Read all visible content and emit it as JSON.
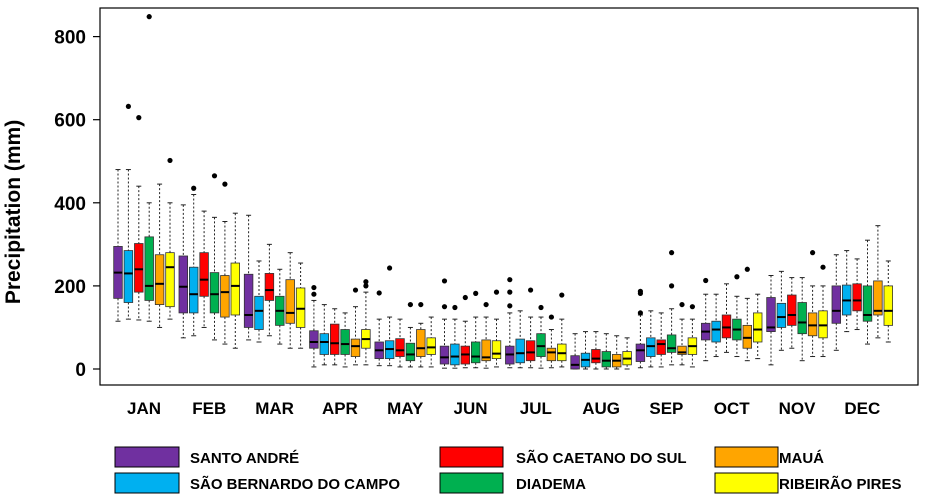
{
  "chart_data": {
    "type": "boxplot",
    "title": "",
    "xlabel": "",
    "ylabel": "Precipitation (mm)",
    "ylim": [
      0,
      870
    ],
    "yticks": [
      0,
      200,
      400,
      600,
      800
    ],
    "categories": [
      "JAN",
      "FEB",
      "MAR",
      "APR",
      "MAY",
      "JUN",
      "JUL",
      "AUG",
      "SEP",
      "OCT",
      "NOV",
      "DEC"
    ],
    "series": [
      {
        "name": "SANTO ANDRÉ",
        "color": "#7030a0",
        "boxes": [
          {
            "min": 115,
            "q1": 170,
            "median": 232,
            "q3": 295,
            "max": 480,
            "outliers": []
          },
          {
            "min": 75,
            "q1": 135,
            "median": 198,
            "q3": 272,
            "max": 395,
            "outliers": []
          },
          {
            "min": 70,
            "q1": 100,
            "median": 130,
            "q3": 228,
            "max": 370,
            "outliers": []
          },
          {
            "min": 5,
            "q1": 50,
            "median": 65,
            "q3": 92,
            "max": 165,
            "outliers": [
              180,
              196
            ]
          },
          {
            "min": 8,
            "q1": 25,
            "median": 45,
            "q3": 65,
            "max": 120,
            "outliers": [
              183
            ]
          },
          {
            "min": 2,
            "q1": 12,
            "median": 28,
            "q3": 55,
            "max": 120,
            "outliers": [
              150,
              212
            ]
          },
          {
            "min": 3,
            "q1": 12,
            "median": 35,
            "q3": 55,
            "max": 135,
            "outliers": [
              152,
              185,
              215
            ]
          },
          {
            "min": 0,
            "q1": 0,
            "median": 10,
            "q3": 32,
            "max": 85,
            "outliers": []
          },
          {
            "min": 3,
            "q1": 18,
            "median": 45,
            "q3": 60,
            "max": 130,
            "outliers": [
              135,
              182,
              187
            ]
          },
          {
            "min": 20,
            "q1": 70,
            "median": 90,
            "q3": 110,
            "max": 180,
            "outliers": [
              213
            ]
          },
          {
            "min": 10,
            "q1": 90,
            "median": 100,
            "q3": 172,
            "max": 225,
            "outliers": []
          },
          {
            "min": 45,
            "q1": 110,
            "median": 140,
            "q3": 200,
            "max": 275,
            "outliers": []
          }
        ]
      },
      {
        "name": "SÃO BERNARDO DO CAMPO",
        "color": "#00b0f0",
        "boxes": [
          {
            "min": 120,
            "q1": 160,
            "median": 230,
            "q3": 285,
            "max": 480,
            "outliers": [
              632
            ]
          },
          {
            "min": 80,
            "q1": 135,
            "median": 180,
            "q3": 245,
            "max": 420,
            "outliers": [
              435
            ]
          },
          {
            "min": 65,
            "q1": 95,
            "median": 140,
            "q3": 175,
            "max": 260,
            "outliers": []
          },
          {
            "min": 10,
            "q1": 35,
            "median": 65,
            "q3": 85,
            "max": 155,
            "outliers": []
          },
          {
            "min": 8,
            "q1": 25,
            "median": 48,
            "q3": 68,
            "max": 125,
            "outliers": [
              243
            ]
          },
          {
            "min": 2,
            "q1": 10,
            "median": 30,
            "q3": 60,
            "max": 120,
            "outliers": [
              148
            ]
          },
          {
            "min": 3,
            "q1": 15,
            "median": 38,
            "q3": 72,
            "max": 140,
            "outliers": []
          },
          {
            "min": 0,
            "q1": 5,
            "median": 22,
            "q3": 38,
            "max": 90,
            "outliers": []
          },
          {
            "min": 5,
            "q1": 30,
            "median": 55,
            "q3": 75,
            "max": 140,
            "outliers": []
          },
          {
            "min": 30,
            "q1": 65,
            "median": 95,
            "q3": 115,
            "max": 180,
            "outliers": []
          },
          {
            "min": 45,
            "q1": 100,
            "median": 125,
            "q3": 158,
            "max": 235,
            "outliers": []
          },
          {
            "min": 90,
            "q1": 130,
            "median": 165,
            "q3": 202,
            "max": 285,
            "outliers": []
          }
        ]
      },
      {
        "name": "SÃO CAETANO DO SUL",
        "color": "#ff0000",
        "boxes": [
          {
            "min": 118,
            "q1": 185,
            "median": 240,
            "q3": 302,
            "max": 440,
            "outliers": [
              605
            ]
          },
          {
            "min": 100,
            "q1": 175,
            "median": 215,
            "q3": 280,
            "max": 380,
            "outliers": []
          },
          {
            "min": 80,
            "q1": 165,
            "median": 190,
            "q3": 230,
            "max": 300,
            "outliers": []
          },
          {
            "min": 10,
            "q1": 35,
            "median": 62,
            "q3": 108,
            "max": 145,
            "outliers": []
          },
          {
            "min": 5,
            "q1": 30,
            "median": 45,
            "q3": 73,
            "max": 120,
            "outliers": []
          },
          {
            "min": 3,
            "q1": 12,
            "median": 35,
            "q3": 55,
            "max": 115,
            "outliers": [
              172
            ]
          },
          {
            "min": 3,
            "q1": 20,
            "median": 40,
            "q3": 68,
            "max": 125,
            "outliers": [
              190
            ]
          },
          {
            "min": 0,
            "q1": 15,
            "median": 25,
            "q3": 47,
            "max": 90,
            "outliers": []
          },
          {
            "min": 5,
            "q1": 35,
            "median": 60,
            "q3": 70,
            "max": 135,
            "outliers": []
          },
          {
            "min": 40,
            "q1": 75,
            "median": 100,
            "q3": 130,
            "max": 205,
            "outliers": []
          },
          {
            "min": 50,
            "q1": 105,
            "median": 130,
            "q3": 178,
            "max": 220,
            "outliers": []
          },
          {
            "min": 95,
            "q1": 140,
            "median": 165,
            "q3": 205,
            "max": 265,
            "outliers": []
          }
        ]
      },
      {
        "name": "DIADEMA",
        "color": "#00b050",
        "boxes": [
          {
            "min": 115,
            "q1": 165,
            "median": 200,
            "q3": 318,
            "max": 400,
            "outliers": [
              848
            ]
          },
          {
            "min": 70,
            "q1": 135,
            "median": 180,
            "q3": 232,
            "max": 365,
            "outliers": [
              465
            ]
          },
          {
            "min": 60,
            "q1": 105,
            "median": 140,
            "q3": 175,
            "max": 240,
            "outliers": []
          },
          {
            "min": 5,
            "q1": 35,
            "median": 60,
            "q3": 95,
            "max": 135,
            "outliers": []
          },
          {
            "min": 5,
            "q1": 20,
            "median": 35,
            "q3": 62,
            "max": 100,
            "outliers": [
              155
            ]
          },
          {
            "min": 3,
            "q1": 15,
            "median": 30,
            "q3": 65,
            "max": 125,
            "outliers": [
              182
            ]
          },
          {
            "min": 2,
            "q1": 30,
            "median": 55,
            "q3": 85,
            "max": 125,
            "outliers": [
              148
            ]
          },
          {
            "min": 0,
            "q1": 5,
            "median": 20,
            "q3": 42,
            "max": 85,
            "outliers": []
          },
          {
            "min": 10,
            "q1": 40,
            "median": 50,
            "q3": 82,
            "max": 145,
            "outliers": [
              200,
              280
            ]
          },
          {
            "min": 30,
            "q1": 70,
            "median": 95,
            "q3": 120,
            "max": 175,
            "outliers": [
              222
            ]
          },
          {
            "min": 20,
            "q1": 85,
            "median": 112,
            "q3": 160,
            "max": 220,
            "outliers": []
          },
          {
            "min": 60,
            "q1": 115,
            "median": 130,
            "q3": 200,
            "max": 310,
            "outliers": []
          }
        ]
      },
      {
        "name": "MAUÁ",
        "color": "#ffa500",
        "boxes": [
          {
            "min": 100,
            "q1": 155,
            "median": 205,
            "q3": 275,
            "max": 445,
            "outliers": []
          },
          {
            "min": 60,
            "q1": 125,
            "median": 185,
            "q3": 225,
            "max": 355,
            "outliers": [
              445
            ]
          },
          {
            "min": 50,
            "q1": 110,
            "median": 135,
            "q3": 215,
            "max": 280,
            "outliers": []
          },
          {
            "min": 10,
            "q1": 30,
            "median": 55,
            "q3": 72,
            "max": 150,
            "outliers": [
              190
            ]
          },
          {
            "min": 5,
            "q1": 30,
            "median": 50,
            "q3": 95,
            "max": 110,
            "outliers": [
              155
            ]
          },
          {
            "min": 2,
            "q1": 20,
            "median": 28,
            "q3": 70,
            "max": 125,
            "outliers": [
              155
            ]
          },
          {
            "min": 3,
            "q1": 20,
            "median": 40,
            "q3": 50,
            "max": 95,
            "outliers": [
              125
            ]
          },
          {
            "min": 0,
            "q1": 5,
            "median": 20,
            "q3": 35,
            "max": 80,
            "outliers": []
          },
          {
            "min": 10,
            "q1": 35,
            "median": 40,
            "q3": 55,
            "max": 120,
            "outliers": [
              155
            ]
          },
          {
            "min": 20,
            "q1": 50,
            "median": 75,
            "q3": 105,
            "max": 170,
            "outliers": [
              240
            ]
          },
          {
            "min": 30,
            "q1": 80,
            "median": 105,
            "q3": 135,
            "max": 200,
            "outliers": [
              280
            ]
          },
          {
            "min": 75,
            "q1": 130,
            "median": 140,
            "q3": 212,
            "max": 345,
            "outliers": []
          }
        ]
      },
      {
        "name": "RIBEIRÃO PIRES",
        "color": "#ffff00",
        "boxes": [
          {
            "min": 120,
            "q1": 150,
            "median": 245,
            "q3": 280,
            "max": 400,
            "outliers": [
              502
            ]
          },
          {
            "min": 50,
            "q1": 130,
            "median": 200,
            "q3": 255,
            "max": 375,
            "outliers": []
          },
          {
            "min": 50,
            "q1": 100,
            "median": 145,
            "q3": 195,
            "max": 255,
            "outliers": []
          },
          {
            "min": 10,
            "q1": 50,
            "median": 72,
            "q3": 95,
            "max": 185,
            "outliers": [
              200,
              210
            ]
          },
          {
            "min": 5,
            "q1": 35,
            "median": 52,
            "q3": 75,
            "max": 125,
            "outliers": []
          },
          {
            "min": 5,
            "q1": 25,
            "median": 37,
            "q3": 68,
            "max": 120,
            "outliers": [
              185
            ]
          },
          {
            "min": 5,
            "q1": 20,
            "median": 38,
            "q3": 60,
            "max": 120,
            "outliers": [
              178
            ]
          },
          {
            "min": 0,
            "q1": 10,
            "median": 25,
            "q3": 42,
            "max": 75,
            "outliers": []
          },
          {
            "min": 5,
            "q1": 35,
            "median": 55,
            "q3": 75,
            "max": 120,
            "outliers": [
              150
            ]
          },
          {
            "min": 25,
            "q1": 65,
            "median": 95,
            "q3": 135,
            "max": 180,
            "outliers": []
          },
          {
            "min": 30,
            "q1": 75,
            "median": 105,
            "q3": 140,
            "max": 200,
            "outliers": [
              245
            ]
          },
          {
            "min": 65,
            "q1": 105,
            "median": 140,
            "q3": 200,
            "max": 260,
            "outliers": []
          }
        ]
      }
    ],
    "legend": {
      "placement": "bottom",
      "entries": [
        {
          "label": "SANTO ANDRÉ",
          "color": "#7030a0"
        },
        {
          "label": "SÃO BERNARDO DO CAMPO",
          "color": "#00b0f0"
        },
        {
          "label": "SÃO CAETANO DO SUL",
          "color": "#ff0000"
        },
        {
          "label": "DIADEMA",
          "color": "#00b050"
        },
        {
          "label": "MAUÁ",
          "color": "#ffa500"
        },
        {
          "label": "RIBEIRÃO PIRES",
          "color": "#ffff00"
        }
      ]
    }
  }
}
